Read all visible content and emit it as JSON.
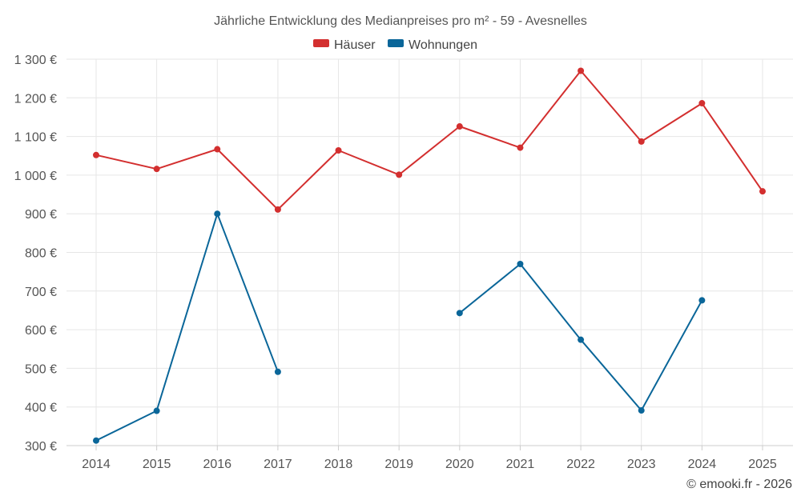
{
  "chart_data": {
    "type": "line",
    "title": "Jährliche Entwicklung des Medianpreises pro m² - 59 - Avesnelles",
    "categories": [
      "2014",
      "2015",
      "2016",
      "2017",
      "2018",
      "2019",
      "2020",
      "2021",
      "2022",
      "2023",
      "2024",
      "2025"
    ],
    "ylim": [
      300,
      1300
    ],
    "yticks": [
      300,
      400,
      500,
      600,
      700,
      800,
      900,
      1000,
      1100,
      1200,
      1300
    ],
    "ytick_labels": [
      "300 €",
      "400 €",
      "500 €",
      "600 €",
      "700 €",
      "800 €",
      "900 €",
      "1 000 €",
      "1 100 €",
      "1 200 €",
      "1 300 €"
    ],
    "grid": true,
    "legend_position": "top-center",
    "series": [
      {
        "name": "Häuser",
        "color": "#d32f2f",
        "values": [
          1052,
          1016,
          1067,
          911,
          1064,
          1001,
          1126,
          1071,
          1270,
          1087,
          1186,
          958
        ]
      },
      {
        "name": "Wohnungen",
        "color": "#0a6699",
        "values": [
          313,
          390,
          900,
          491,
          null,
          null,
          643,
          770,
          574,
          391,
          676,
          null
        ]
      }
    ],
    "credit": "© emooki.fr - 2026"
  }
}
